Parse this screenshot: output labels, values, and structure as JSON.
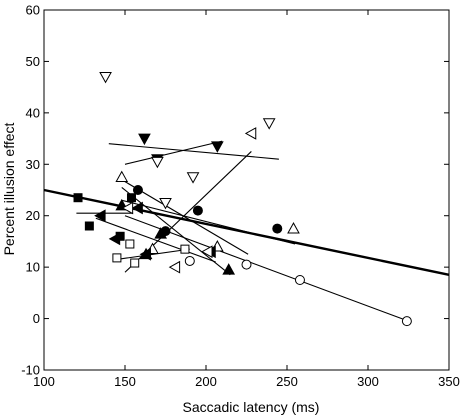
{
  "chart_data": {
    "type": "scatter",
    "title": "",
    "xlabel": "Saccadic latency (ms)",
    "ylabel": "Percent illusion effect",
    "xlim": [
      100,
      350
    ],
    "ylim": [
      -10,
      60
    ],
    "xticks": [
      "100",
      "150",
      "200",
      "250",
      "300",
      "350"
    ],
    "yticks": [
      "-10",
      "0",
      "10",
      "20",
      "30",
      "40",
      "50",
      "60"
    ],
    "grid": false,
    "legend": "none",
    "series": [
      {
        "marker": "circle-filled",
        "points": [
          [
            158,
            25
          ],
          [
            175,
            17
          ],
          [
            195,
            21
          ],
          [
            244,
            17.5
          ]
        ],
        "fit": [
          [
            148,
            27
          ],
          [
            226,
            12.5
          ]
        ]
      },
      {
        "marker": "circle-open",
        "points": [
          [
            190,
            11.2
          ],
          [
            225,
            10.5
          ],
          [
            258,
            7.5
          ],
          [
            324,
            -0.5
          ]
        ],
        "fit": [
          [
            150,
            20
          ],
          [
            325,
            -0.5
          ]
        ]
      },
      {
        "marker": "square-filled",
        "points": [
          [
            121,
            23.5
          ],
          [
            128,
            18
          ],
          [
            147,
            16
          ],
          [
            154,
            23.5
          ]
        ],
        "fit": [
          [
            120,
            20.5
          ],
          [
            155,
            20.5
          ]
        ]
      },
      {
        "marker": "square-open",
        "points": [
          [
            145,
            11.8
          ],
          [
            153,
            14.5
          ],
          [
            156,
            10.8
          ],
          [
            187,
            13.5
          ]
        ],
        "fit": [
          [
            145,
            11.5
          ],
          [
            190,
            13.5
          ]
        ]
      },
      {
        "marker": "triangle-up-filled",
        "points": [
          [
            148,
            22
          ],
          [
            163,
            12.5
          ],
          [
            172,
            16.5
          ],
          [
            214,
            9.5
          ]
        ],
        "fit": [
          [
            148,
            25.5
          ],
          [
            215,
            8.5
          ]
        ]
      },
      {
        "marker": "triangle-up-open",
        "points": [
          [
            148,
            27.5
          ],
          [
            167,
            13.5
          ],
          [
            207,
            14
          ],
          [
            254,
            17.5
          ]
        ],
        "fit": [
          [
            148,
            23
          ],
          [
            255,
            14.5
          ]
        ]
      },
      {
        "marker": "triangle-down-filled",
        "points": [
          [
            162,
            35
          ],
          [
            170,
            31
          ],
          [
            207,
            33.5
          ]
        ],
        "fit": [
          [
            150,
            30
          ],
          [
            210,
            34.5
          ]
        ]
      },
      {
        "marker": "triangle-down-open",
        "points": [
          [
            138,
            47
          ],
          [
            170,
            30.5
          ],
          [
            192,
            27.5
          ],
          [
            239,
            38
          ],
          [
            175,
            22.5
          ]
        ],
        "fit": [
          [
            140,
            34
          ],
          [
            245,
            31
          ]
        ]
      },
      {
        "marker": "triangle-left-filled",
        "points": [
          [
            135,
            20
          ],
          [
            144,
            15.5
          ],
          [
            158,
            21.5
          ],
          [
            163,
            12.5
          ],
          [
            203,
            13
          ]
        ],
        "fit": [
          [
            132,
            19.5
          ],
          [
            206,
            11
          ]
        ]
      },
      {
        "marker": "triangle-left-open",
        "points": [
          [
            152,
            21.5
          ],
          [
            181,
            10
          ],
          [
            201,
            13
          ],
          [
            228,
            36
          ]
        ],
        "fit": [
          [
            150,
            9
          ],
          [
            228,
            32.5
          ]
        ]
      }
    ],
    "overall_fit": [
      [
        100,
        25
      ],
      [
        350,
        8.5
      ]
    ]
  }
}
